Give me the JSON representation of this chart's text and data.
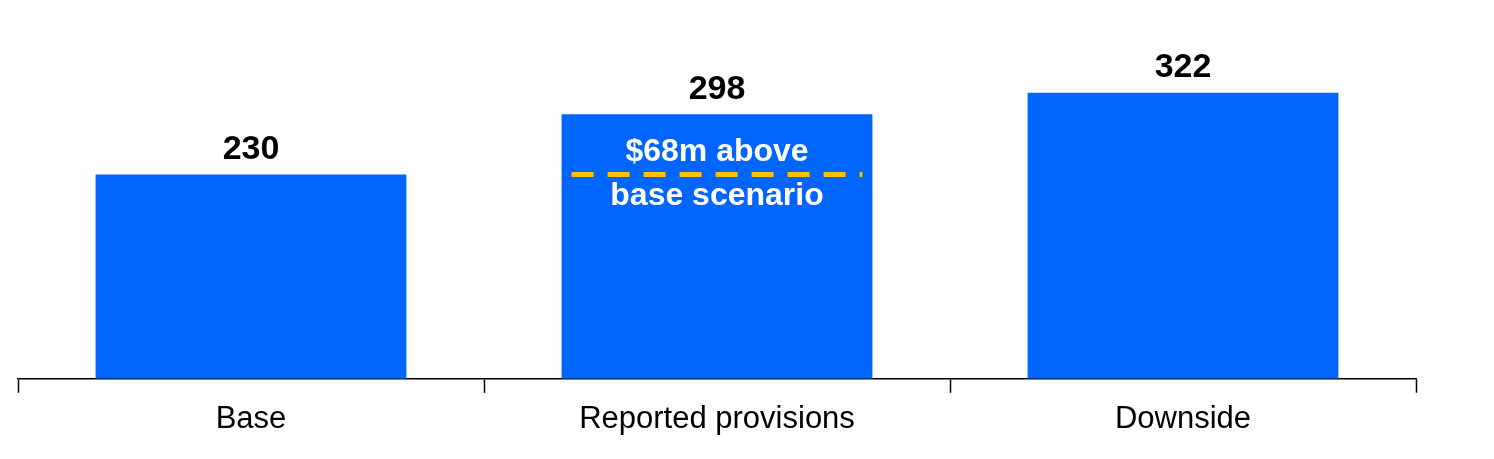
{
  "chart_data": {
    "type": "bar",
    "categories": [
      "Base",
      "Reported provisions",
      "Downside"
    ],
    "values": [
      230,
      298,
      322
    ],
    "color": "#0066ff",
    "data_labels": true,
    "grid": false,
    "legend": false,
    "ref_lines": [
      {
        "axis": "y",
        "value": 230,
        "color": "#ffc000",
        "line_style": "dashed"
      }
    ],
    "annotations": [
      "$68m above base scenario"
    ]
  }
}
